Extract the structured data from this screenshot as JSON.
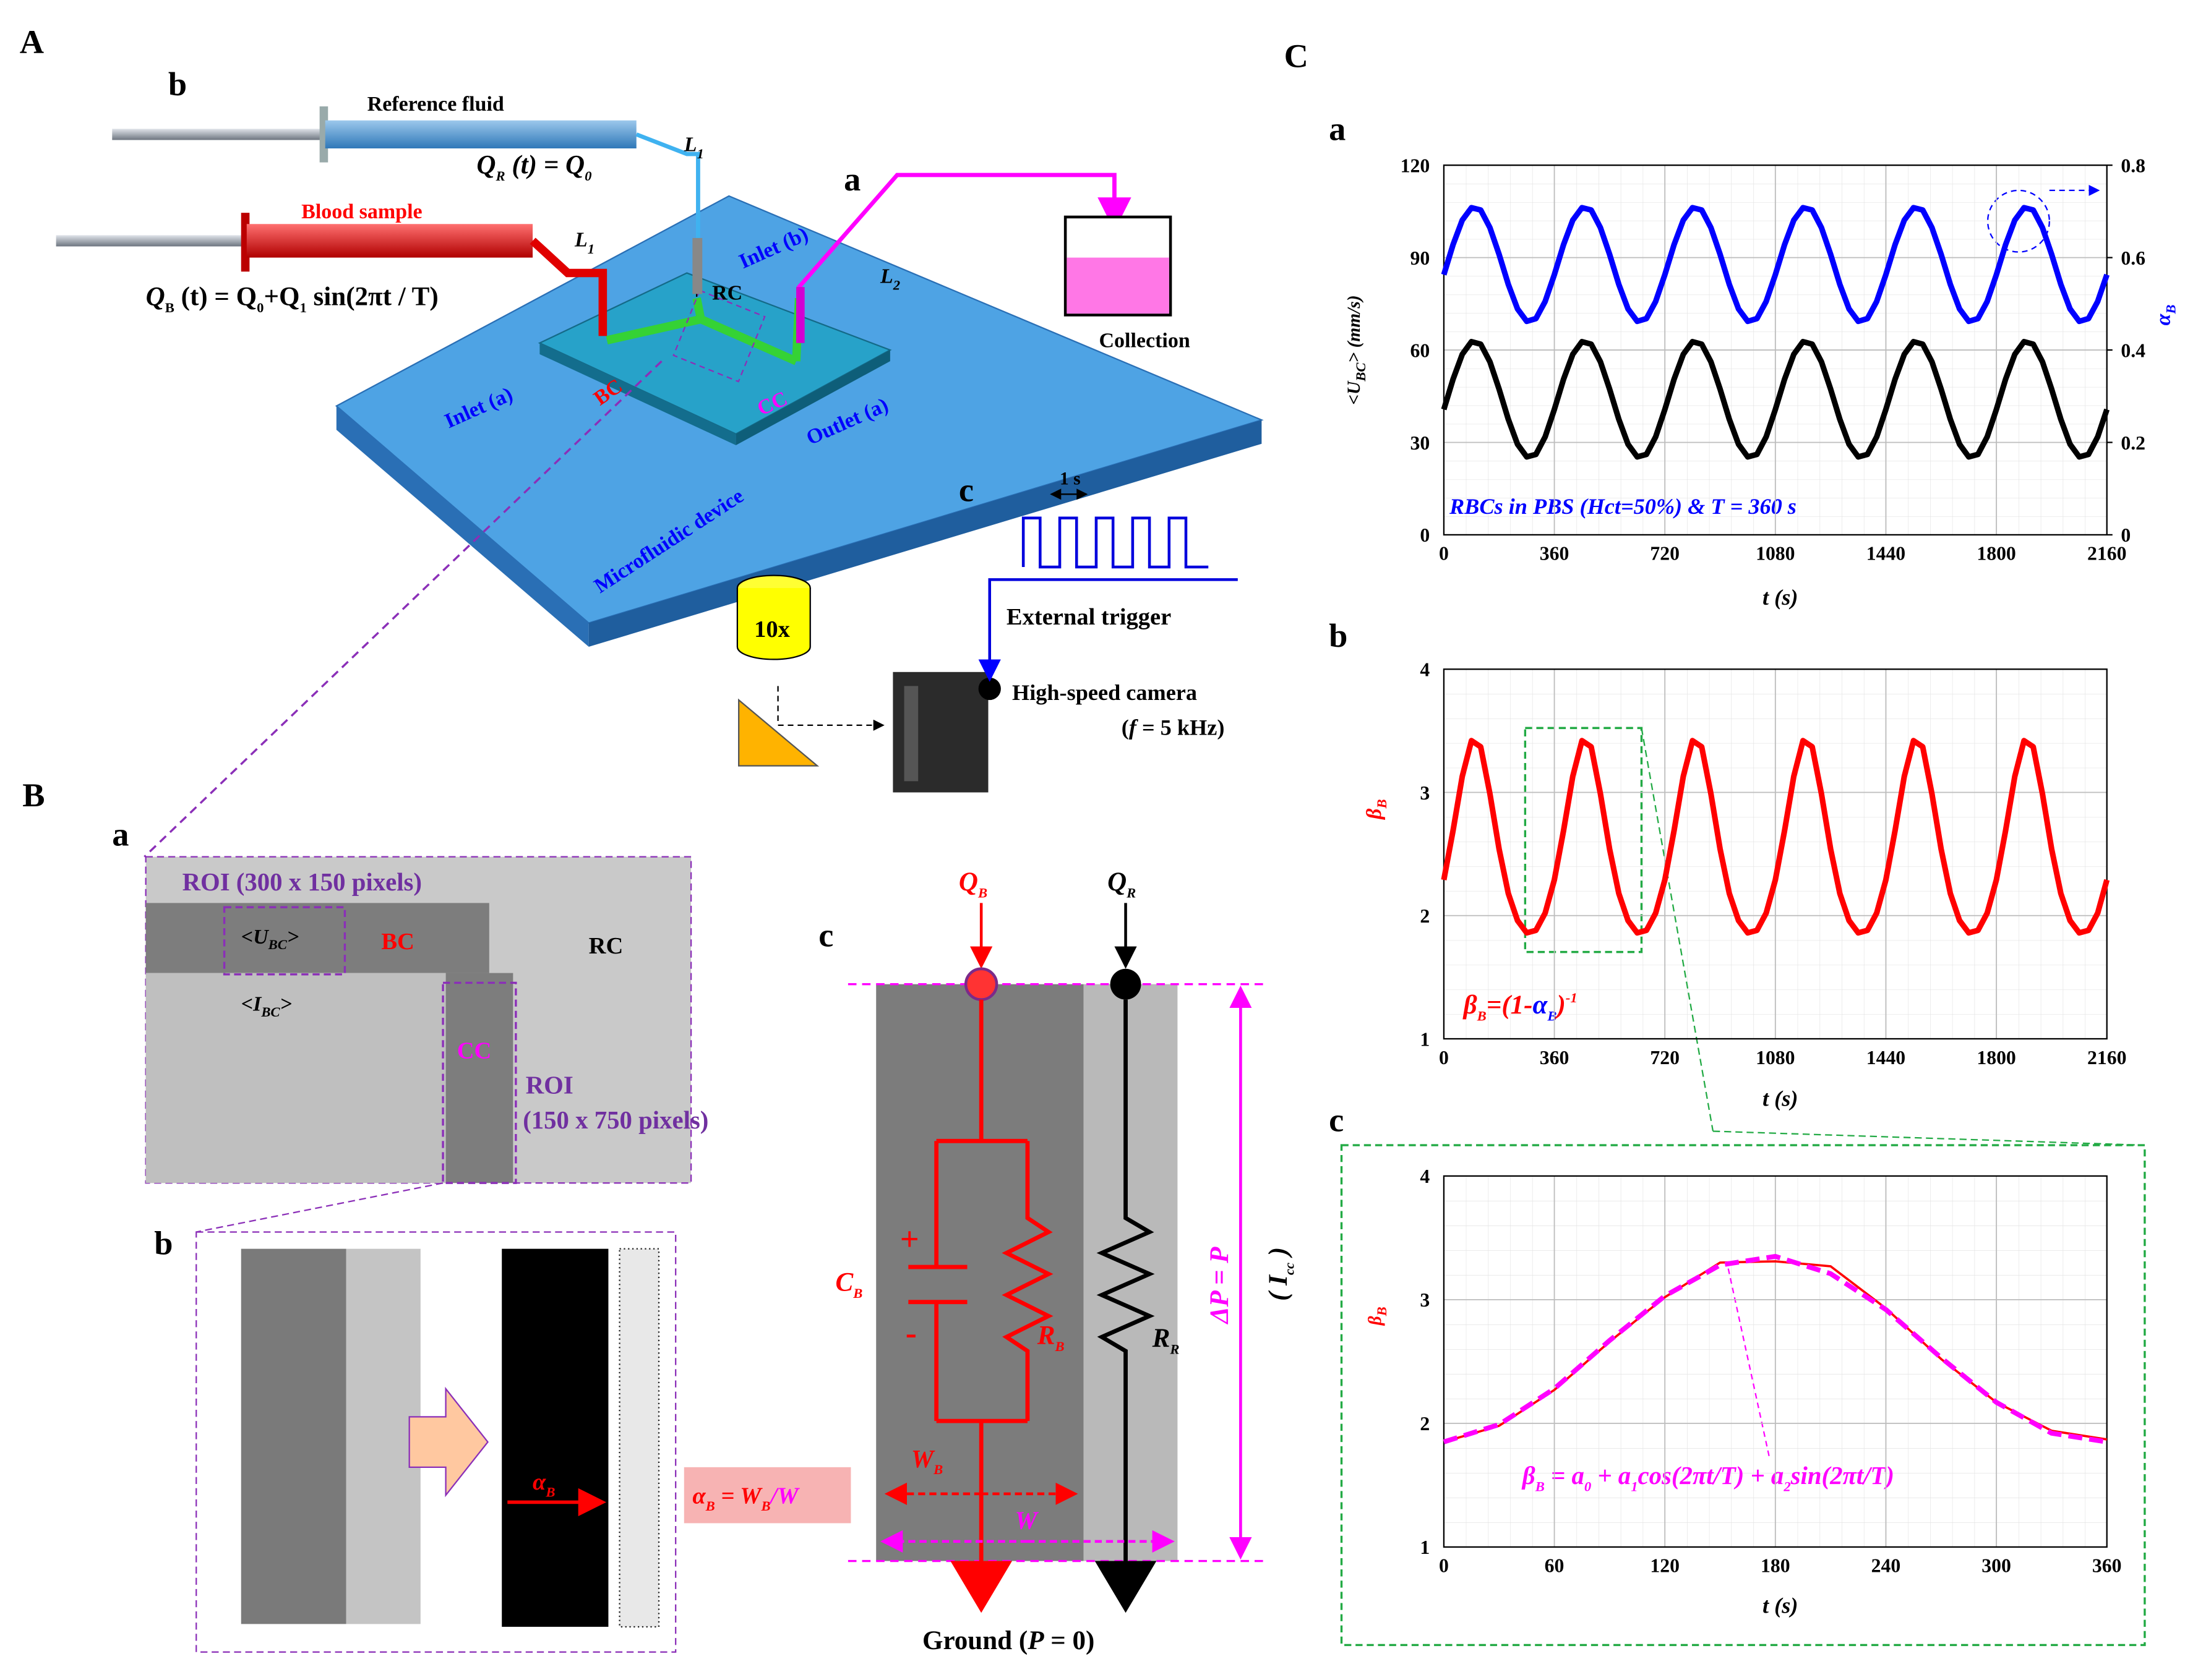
{
  "figure": {
    "panel_A": "A",
    "panel_A_b": "b",
    "reference_fluid": "Reference fluid",
    "qr_eq": [
      "Q",
      "R",
      " (t) = Q",
      "0"
    ],
    "l1_top": [
      "L",
      "1"
    ],
    "blood_sample": "Blood sample",
    "l1_bottom": [
      "L",
      "1"
    ],
    "qb_eq": [
      "Q",
      "B",
      " (t) = Q",
      "0",
      "+Q",
      "1",
      " sin(2πt / T)"
    ],
    "panel_A_a": "a",
    "inlet_b": "Inlet (b)",
    "rc_device": "RC",
    "l2": [
      "L",
      "2"
    ],
    "collection": "Collection",
    "inlet_a": "Inlet (a)",
    "bc_device": "BC",
    "cc_device": "CC",
    "outlet_a": "Outlet (a)",
    "microfluidic_device": "Microfluidic device",
    "panel_A_c": "c",
    "one_s": "1 s",
    "external_trigger": "External trigger",
    "objective": "10x",
    "camera": "High-speed camera",
    "camera_freq": [
      "(",
      "f",
      " = 5 kHz)"
    ],
    "panel_B": "B",
    "panel_B_a": "a",
    "roi_1": "ROI (300 x 150 pixels)",
    "u_bc": [
      "<U",
      "BC",
      ">"
    ],
    "bc_roi": "BC",
    "rc_roi": "RC",
    "i_bc": [
      "<I",
      "BC",
      ">"
    ],
    "cc_roi": "CC",
    "roi_2_title": "ROI",
    "roi_2_size": "(150 x 750 pixels)",
    "panel_B_b": "b",
    "alpha_arrow": [
      "α",
      "B"
    ],
    "alpha_def": [
      "α",
      "B",
      " = W",
      "B",
      "/W"
    ],
    "panel_B_c": "c",
    "q_b": [
      "Q",
      "B"
    ],
    "q_r": [
      "Q",
      "R"
    ],
    "plus": "+",
    "minus": "-",
    "c_b": [
      "C",
      "B"
    ],
    "r_b": [
      "R",
      "B"
    ],
    "r_r": [
      "R",
      "R"
    ],
    "delta_p": "ΔP = P",
    "i_cc": [
      "( I",
      "cc",
      " )"
    ],
    "w_b": [
      "W",
      "B"
    ],
    "w": "W",
    "ground": [
      "Ground (",
      "P",
      " = 0)"
    ],
    "panel_C": "C",
    "panel_C_a": "a",
    "panel_C_b": "b",
    "panel_C_c": "c"
  },
  "chart_data": [
    {
      "type": "line",
      "ylabel": [
        "<U",
        "BC",
        "> (mm/s)"
      ],
      "y2label": [
        "α",
        "B"
      ],
      "xlabel": [
        "t",
        " (s)"
      ],
      "annotation": "RBCs in PBS (Hct=50%) & T = 360 s",
      "x": [
        0,
        30,
        60,
        90,
        120,
        150,
        180,
        210,
        240,
        270,
        300,
        330,
        360,
        390,
        420,
        450,
        480,
        510,
        540,
        570,
        600,
        630,
        660,
        690,
        720,
        750,
        780,
        810,
        840,
        870,
        900,
        930,
        960,
        990,
        1020,
        1050,
        1080,
        1110,
        1140,
        1170,
        1200,
        1230,
        1260,
        1290,
        1320,
        1350,
        1380,
        1410,
        1440,
        1470,
        1500,
        1530,
        1560,
        1590,
        1620,
        1650,
        1680,
        1710,
        1740,
        1770,
        1800,
        1830,
        1860,
        1890,
        1920,
        1950,
        1980,
        2010,
        2040,
        2070,
        2100,
        2130,
        2160
      ],
      "series": [
        {
          "color": "#000000",
          "values": [
            40.7,
            50.5,
            58.6,
            62.7,
            61.9,
            56.2,
            47.3,
            37.5,
            29.4,
            25.3,
            26.1,
            31.8,
            40.7,
            50.5,
            58.6,
            62.7,
            61.9,
            56.2,
            47.3,
            37.5,
            29.4,
            25.3,
            26.1,
            31.8,
            40.7,
            50.5,
            58.6,
            62.7,
            61.9,
            56.2,
            47.3,
            37.5,
            29.4,
            25.3,
            26.1,
            31.8,
            40.7,
            50.5,
            58.6,
            62.7,
            61.9,
            56.2,
            47.3,
            37.5,
            29.4,
            25.3,
            26.1,
            31.8,
            40.7,
            50.5,
            58.6,
            62.7,
            61.9,
            56.2,
            47.3,
            37.5,
            29.4,
            25.3,
            26.1,
            31.8,
            40.7,
            50.5,
            58.6,
            62.7,
            61.9,
            56.2,
            47.3,
            37.5,
            29.4,
            25.3,
            26.1,
            31.8,
            40.7
          ]
        },
        {
          "color": "#0000ff",
          "axis": "y2",
          "values": [
            0.563,
            0.628,
            0.681,
            0.708,
            0.703,
            0.665,
            0.607,
            0.542,
            0.489,
            0.462,
            0.468,
            0.505,
            0.563,
            0.628,
            0.681,
            0.708,
            0.703,
            0.665,
            0.607,
            0.542,
            0.489,
            0.462,
            0.468,
            0.505,
            0.563,
            0.628,
            0.681,
            0.708,
            0.703,
            0.665,
            0.607,
            0.542,
            0.489,
            0.462,
            0.468,
            0.505,
            0.563,
            0.628,
            0.681,
            0.708,
            0.703,
            0.665,
            0.607,
            0.542,
            0.489,
            0.462,
            0.468,
            0.505,
            0.563,
            0.628,
            0.681,
            0.708,
            0.703,
            0.665,
            0.607,
            0.542,
            0.489,
            0.462,
            0.468,
            0.505,
            0.563,
            0.628,
            0.681,
            0.708,
            0.703,
            0.665,
            0.607,
            0.542,
            0.489,
            0.462,
            0.468,
            0.505,
            0.563
          ]
        }
      ],
      "xlim": [
        0,
        2160
      ],
      "xticks": [
        0,
        360,
        720,
        1080,
        1440,
        1800,
        2160
      ],
      "ylim": [
        0,
        120
      ],
      "yticks": [
        0,
        30,
        60,
        90,
        120
      ],
      "y2lim": [
        0,
        0.8
      ],
      "y2ticks": [
        0,
        0.2,
        0.4,
        0.6,
        0.8
      ],
      "grid": true
    },
    {
      "type": "line",
      "ylabel": [
        "β",
        "B"
      ],
      "xlabel": [
        "t",
        " (s)"
      ],
      "annotation": [
        "β",
        "B",
        "=(1-",
        "α",
        "B",
        ")",
        "-1"
      ],
      "x": [
        0,
        30,
        60,
        90,
        120,
        150,
        180,
        210,
        240,
        270,
        300,
        330,
        360,
        390,
        420,
        450,
        480,
        510,
        540,
        570,
        600,
        630,
        660,
        690,
        720,
        750,
        780,
        810,
        840,
        870,
        900,
        930,
        960,
        990,
        1020,
        1050,
        1080,
        1110,
        1140,
        1170,
        1200,
        1230,
        1260,
        1290,
        1320,
        1350,
        1380,
        1410,
        1440,
        1470,
        1500,
        1530,
        1560,
        1590,
        1620,
        1650,
        1680,
        1710,
        1740,
        1770,
        1800,
        1830,
        1860,
        1890,
        1920,
        1950,
        1980,
        2010,
        2040,
        2070,
        2100,
        2130,
        2160
      ],
      "series": [
        {
          "color": "#ff0000",
          "values": [
            2.29,
            2.69,
            3.13,
            3.42,
            3.37,
            2.99,
            2.54,
            2.18,
            1.96,
            1.86,
            1.88,
            2.02,
            2.29,
            2.69,
            3.13,
            3.42,
            3.37,
            2.99,
            2.54,
            2.18,
            1.96,
            1.86,
            1.88,
            2.02,
            2.29,
            2.69,
            3.13,
            3.42,
            3.37,
            2.99,
            2.54,
            2.18,
            1.96,
            1.86,
            1.88,
            2.02,
            2.29,
            2.69,
            3.13,
            3.42,
            3.37,
            2.99,
            2.54,
            2.18,
            1.96,
            1.86,
            1.88,
            2.02,
            2.29,
            2.69,
            3.13,
            3.42,
            3.37,
            2.99,
            2.54,
            2.18,
            1.96,
            1.86,
            1.88,
            2.02,
            2.29,
            2.69,
            3.13,
            3.42,
            3.37,
            2.99,
            2.54,
            2.18,
            1.96,
            1.86,
            1.88,
            2.02,
            2.29
          ]
        }
      ],
      "xlim": [
        0,
        2160
      ],
      "xticks": [
        0,
        360,
        720,
        1080,
        1440,
        1800,
        2160
      ],
      "ylim": [
        1,
        4
      ],
      "yticks": [
        1,
        2,
        3,
        4
      ],
      "grid": true
    },
    {
      "type": "line",
      "ylabel": [
        "β",
        "B"
      ],
      "xlabel": [
        "t",
        " (s)"
      ],
      "annotation": [
        "β",
        "B",
        " = a",
        "0",
        " + a",
        "1",
        "cos(2πt/T) + a",
        "2",
        "sin(2πt/T)"
      ],
      "x": [
        0,
        30,
        60,
        90,
        120,
        150,
        180,
        210,
        240,
        270,
        300,
        330,
        360
      ],
      "series": [
        {
          "color": "#ff0000",
          "values": [
            1.85,
            1.98,
            2.27,
            2.66,
            3.02,
            3.3,
            3.31,
            3.27,
            2.93,
            2.52,
            2.17,
            1.94,
            1.87
          ]
        },
        {
          "color": "#ff00ff",
          "dashed": true,
          "values": [
            1.85,
            1.99,
            2.28,
            2.67,
            3.03,
            3.28,
            3.35,
            3.21,
            2.92,
            2.53,
            2.17,
            1.92,
            1.85
          ]
        }
      ],
      "xlim": [
        0,
        360
      ],
      "xticks": [
        0,
        60,
        120,
        180,
        240,
        300,
        360
      ],
      "ylim": [
        1,
        4
      ],
      "yticks": [
        1,
        2,
        3,
        4
      ],
      "grid": true
    }
  ]
}
